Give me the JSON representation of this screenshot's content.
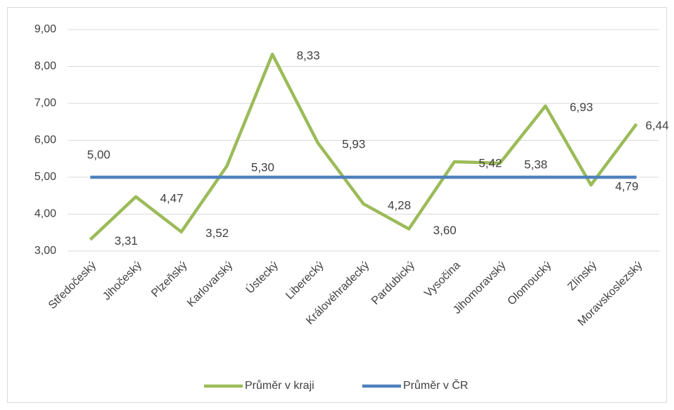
{
  "chart_data": {
    "type": "line",
    "categories": [
      "Středočeský",
      "Jihočeský",
      "Plzeňský",
      "Karlovarský",
      "Ústecký",
      "Liberecký",
      "Královéhradecký",
      "Pardubický",
      "Vysočina",
      "Jihomoravský",
      "Olomoucký",
      "Zlínský",
      "Moravskoslezský"
    ],
    "series": [
      {
        "name": "Průměr v kraji",
        "color": "#9bbb59",
        "values": [
          3.31,
          4.47,
          3.52,
          5.3,
          8.33,
          5.93,
          4.28,
          3.6,
          5.42,
          5.38,
          6.93,
          4.79,
          6.44
        ],
        "value_labels": [
          "3,31",
          "4,47",
          "3,52",
          "5,30",
          "8,33",
          "5,93",
          "4,28",
          "3,60",
          "5,42",
          "5,38",
          "6,93",
          "4,79",
          "6,44"
        ]
      },
      {
        "name": "Průměr v ČR",
        "color": "#4f81bd",
        "values": [
          5.0,
          5.0,
          5.0,
          5.0,
          5.0,
          5.0,
          5.0,
          5.0,
          5.0,
          5.0,
          5.0,
          5.0,
          5.0
        ],
        "value_labels": [
          "5,00",
          null,
          null,
          null,
          null,
          null,
          null,
          null,
          null,
          null,
          null,
          null,
          null
        ]
      }
    ],
    "ylim": [
      3,
      9
    ],
    "yticks": [
      {
        "value": 3,
        "label": "3,00"
      },
      {
        "value": 4,
        "label": "4,00"
      },
      {
        "value": 5,
        "label": "5,00"
      },
      {
        "value": 6,
        "label": "6,00"
      },
      {
        "value": 7,
        "label": "7,00"
      },
      {
        "value": 8,
        "label": "8,00"
      },
      {
        "value": 9,
        "label": "9,00"
      }
    ],
    "grid": true,
    "legend": "bottom"
  }
}
